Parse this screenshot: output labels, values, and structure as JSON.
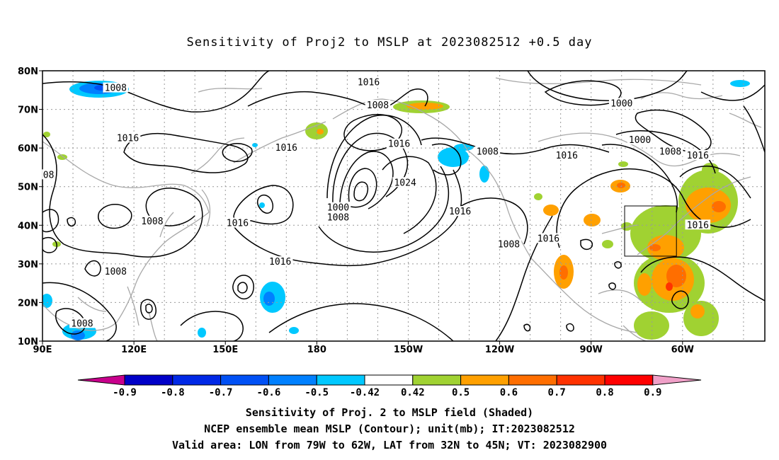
{
  "title": "Sensitivity of Proj2 to MSLP at 2023082512 +0.5 day",
  "axes": {
    "lat_labels": [
      "80N",
      "70N",
      "60N",
      "50N",
      "40N",
      "30N",
      "20N",
      "10N"
    ],
    "lon_labels": [
      "90E",
      "120E",
      "150E",
      "180",
      "150W",
      "120W",
      "90W",
      "60W"
    ]
  },
  "contour_labels": [
    {
      "text": "1008",
      "lon": 114,
      "lat": 75.5
    },
    {
      "text": "1016",
      "lon": 197,
      "lat": 77
    },
    {
      "text": "1008",
      "lon": 200,
      "lat": 71
    },
    {
      "text": "1000",
      "lon": 280,
      "lat": 71.5
    },
    {
      "text": "1016",
      "lon": 118,
      "lat": 62.5
    },
    {
      "text": "08",
      "lon": 92,
      "lat": 53
    },
    {
      "text": "1016",
      "lon": 170,
      "lat": 60
    },
    {
      "text": "1016",
      "lon": 207,
      "lat": 61
    },
    {
      "text": "1008",
      "lon": 236,
      "lat": 59
    },
    {
      "text": "1016",
      "lon": 262,
      "lat": 58
    },
    {
      "text": "1000",
      "lon": 286,
      "lat": 62
    },
    {
      "text": "1008",
      "lon": 296,
      "lat": 59
    },
    {
      "text": "1016",
      "lon": 305,
      "lat": 58
    },
    {
      "text": "1024",
      "lon": 209,
      "lat": 51
    },
    {
      "text": "1008",
      "lon": 126,
      "lat": 41
    },
    {
      "text": "1016",
      "lon": 154,
      "lat": 40.5
    },
    {
      "text": "1000",
      "lon": 187,
      "lat": 44.5
    },
    {
      "text": "1008",
      "lon": 187,
      "lat": 42
    },
    {
      "text": "1016",
      "lon": 227,
      "lat": 43.5
    },
    {
      "text": "1016",
      "lon": 256,
      "lat": 36.5
    },
    {
      "text": "1008",
      "lon": 243,
      "lat": 35
    },
    {
      "text": "1016",
      "lon": 168,
      "lat": 30.5
    },
    {
      "text": "1008",
      "lon": 114,
      "lat": 28
    },
    {
      "text": "1016",
      "lon": 305,
      "lat": 40
    },
    {
      "text": "1008",
      "lon": 103,
      "lat": 14.5
    }
  ],
  "valid_area_box": {
    "lon_min": 281,
    "lon_max": 298,
    "lat_min": 32,
    "lat_max": 45
  },
  "colorbar": {
    "labels": [
      "-0.9",
      "-0.8",
      "-0.7",
      "-0.6",
      "-0.5",
      "-0.42",
      "0.42",
      "0.5",
      "0.6",
      "0.7",
      "0.8",
      "0.9"
    ],
    "colors": [
      "#c8008c",
      "#0000c8",
      "#0028e6",
      "#0050f5",
      "#0080ff",
      "#00c8ff",
      "#ffffff",
      "#a0d232",
      "#ffa000",
      "#ff6e00",
      "#ff3200",
      "#ff0000",
      "#f0a0c8"
    ]
  },
  "captions": [
    "Sensitivity of Proj. 2 to MSLP field (Shaded)",
    "NCEP ensemble mean MSLP (Contour); unit(mb); IT:2023082512",
    "Valid area: LON from 79W to 62W, LAT from 32N to 45N; VT: 2023082900"
  ]
}
